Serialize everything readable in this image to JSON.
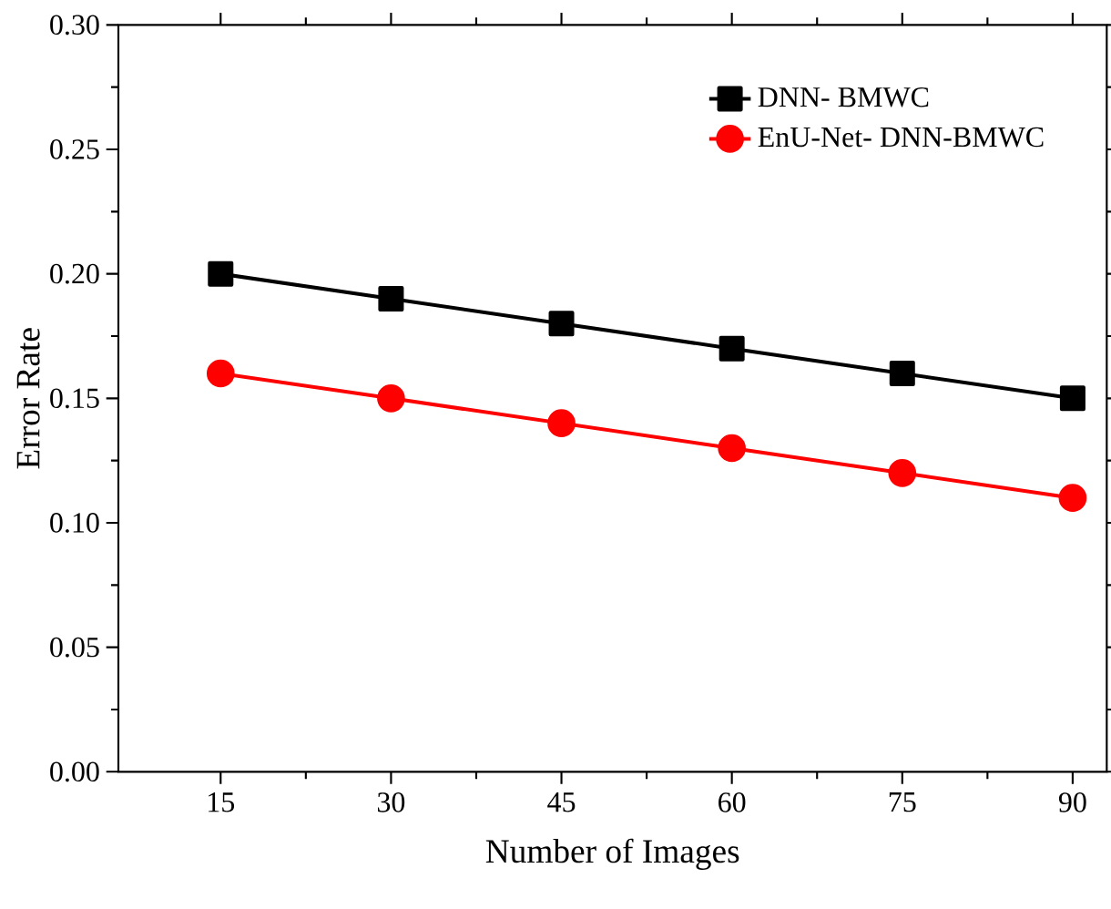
{
  "chart_data": {
    "type": "line",
    "xlabel": "Number of Images",
    "ylabel": "Error Rate",
    "x": [
      15,
      30,
      45,
      60,
      75,
      90
    ],
    "series": [
      {
        "name": "DNN- BMWC",
        "color": "#000000",
        "marker": "square",
        "values": [
          0.2,
          0.19,
          0.18,
          0.17,
          0.16,
          0.15
        ]
      },
      {
        "name": "EnU-Net- DNN-BMWC",
        "color": "#ff0000",
        "marker": "circle",
        "values": [
          0.16,
          0.15,
          0.14,
          0.13,
          0.12,
          0.11
        ]
      }
    ],
    "xlim": [
      6,
      93
    ],
    "xticks": [
      15,
      30,
      45,
      60,
      75,
      90
    ],
    "ylim": [
      0,
      0.3
    ],
    "yticks": [
      {
        "value": 0,
        "label": "0.00"
      },
      {
        "value": 0.05,
        "label": "0.05"
      },
      {
        "value": 0.1,
        "label": "0.10"
      },
      {
        "value": 0.15,
        "label": "0.15"
      },
      {
        "value": 0.2,
        "label": "0.20"
      },
      {
        "value": 0.25,
        "label": "0.25"
      },
      {
        "value": 0.3,
        "label": "0.30"
      }
    ],
    "grid": false,
    "legend": "top right",
    "line_style": "solid"
  }
}
